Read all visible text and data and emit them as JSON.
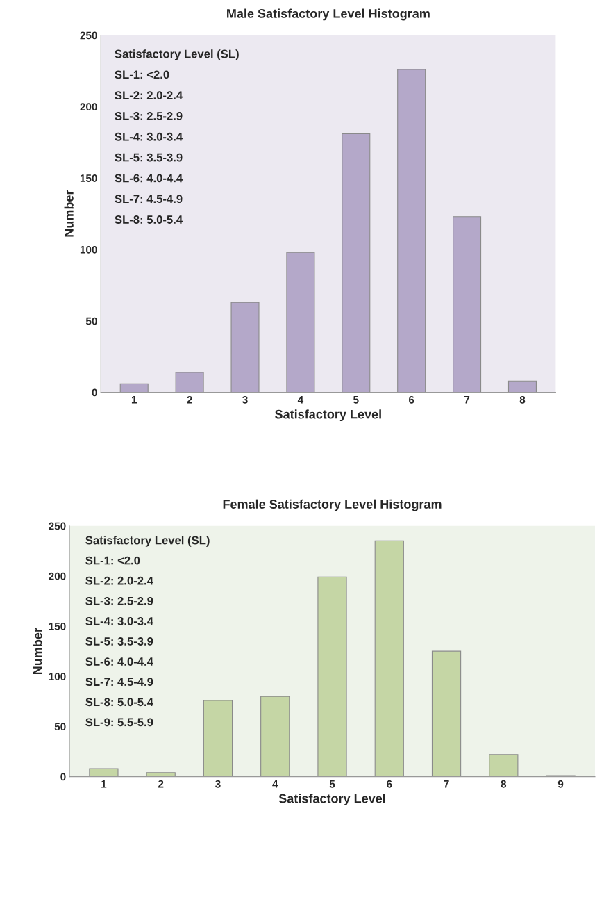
{
  "chart_data": [
    {
      "type": "bar",
      "title": "Male Satisfactory Level Histogram",
      "xlabel": "Satisfactory Level",
      "ylabel": "Number",
      "categories": [
        "1",
        "2",
        "3",
        "4",
        "5",
        "6",
        "7",
        "8"
      ],
      "series": [
        {
          "color": "#b4a8c9",
          "values": [
            6,
            14,
            63,
            98,
            181,
            226,
            123,
            8
          ]
        }
      ],
      "ylim": [
        0,
        250
      ],
      "yticks": [
        0,
        50,
        100,
        150,
        200,
        250
      ],
      "grid": false,
      "legend": false,
      "annotations": [
        "Satisfactory Level (SL)",
        "SL-1: <2.0",
        "SL-2: 2.0-2.4",
        "SL-3: 2.5-2.9",
        "SL-4: 3.0-3.4",
        "SL-5: 3.5-3.9",
        "SL-6: 4.0-4.4",
        "SL-7: 4.5-4.9",
        "SL-8: 5.0-5.4"
      ]
    },
    {
      "type": "bar",
      "title": "Female Satisfactory Level Histogram",
      "xlabel": "Satisfactory Level",
      "ylabel": "Number",
      "categories": [
        "1",
        "2",
        "3",
        "4",
        "5",
        "6",
        "7",
        "8",
        "9"
      ],
      "series": [
        {
          "color": "#c5d6a5",
          "values": [
            8,
            4,
            76,
            80,
            199,
            235,
            125,
            22,
            1
          ]
        }
      ],
      "ylim": [
        0,
        250
      ],
      "yticks": [
        0,
        50,
        100,
        150,
        200,
        250
      ],
      "grid": false,
      "legend": false,
      "annotations": [
        "Satisfactory Level (SL)",
        "SL-1: <2.0",
        "SL-2: 2.0-2.4",
        "SL-3: 2.5-2.9",
        "SL-4: 3.0-3.4",
        "SL-5: 3.5-3.9",
        "SL-6: 4.0-4.4",
        "SL-7: 4.5-4.9",
        "SL-8: 5.0-5.4",
        "SL-9: 5.5-5.9"
      ]
    }
  ]
}
